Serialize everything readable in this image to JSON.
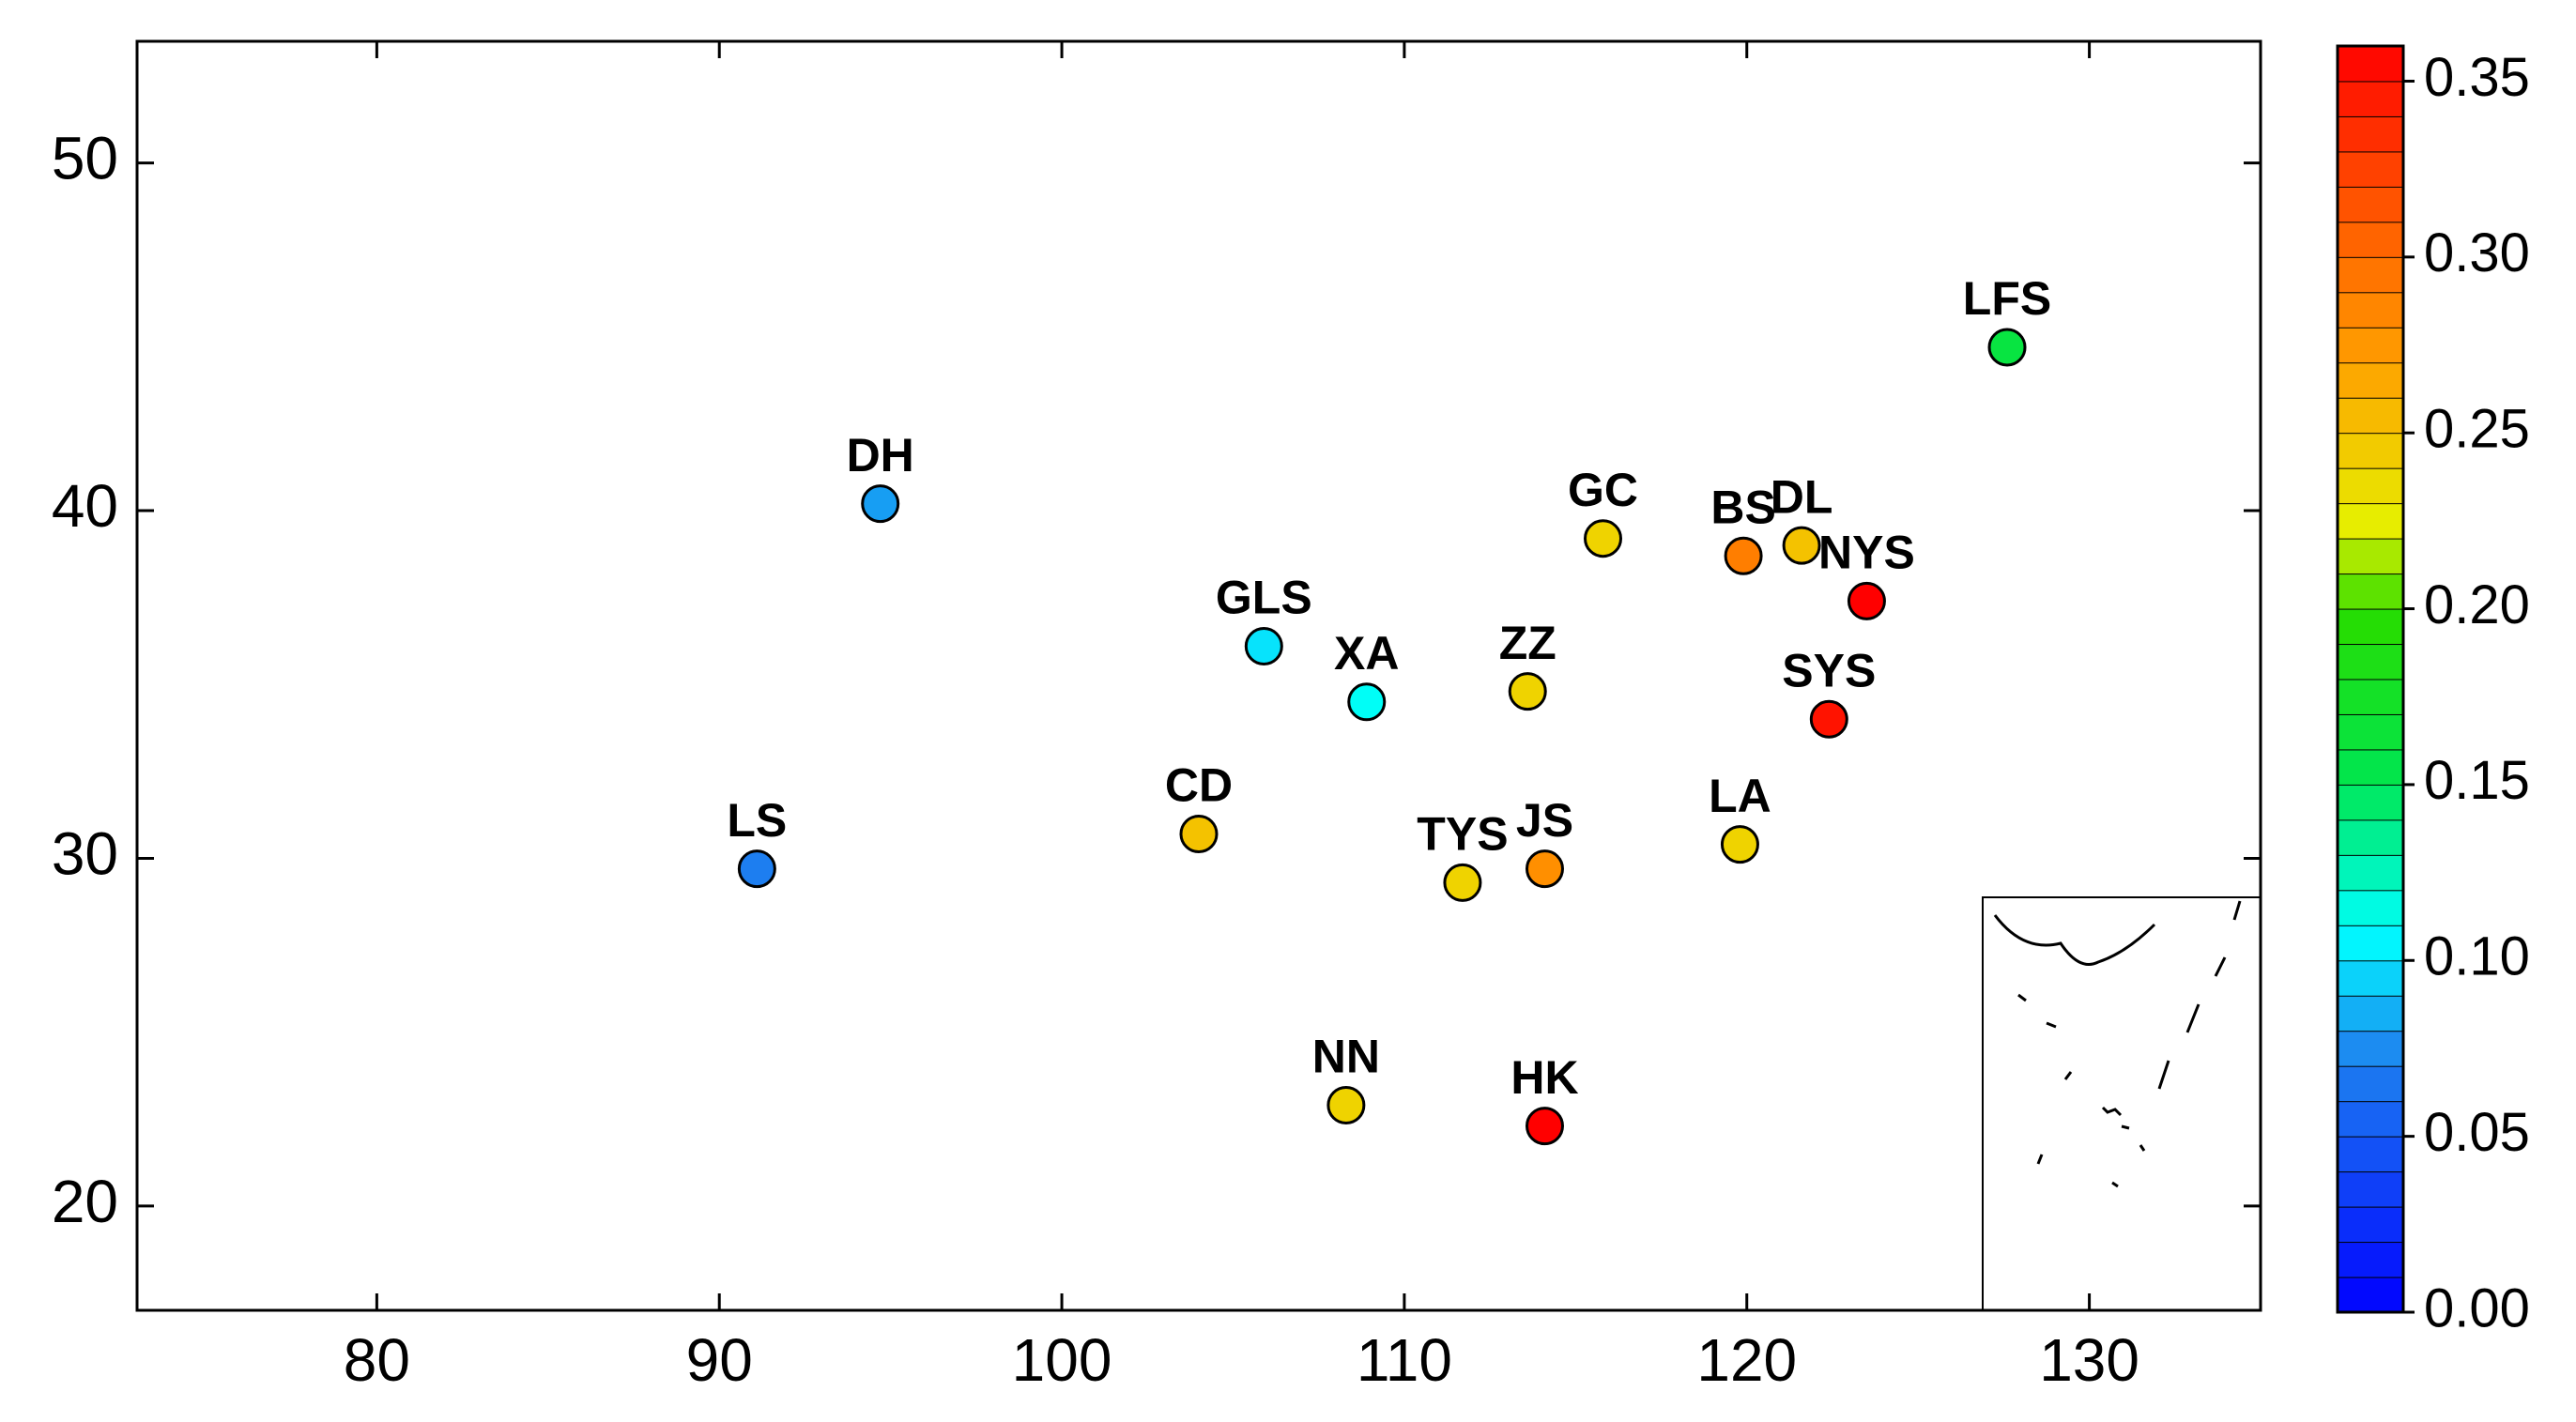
{
  "chart_data": {
    "type": "map",
    "xlim": [
      73,
      135
    ],
    "ylim": [
      17,
      53.5
    ],
    "xticks": [
      80,
      90,
      100,
      110,
      120,
      130
    ],
    "yticks": [
      20,
      30,
      40,
      50
    ],
    "colorbar": {
      "lim": [
        0,
        0.36
      ],
      "ticks": [
        {
          "value": 0,
          "label": "0.00"
        },
        0.05,
        {
          "value": 0.1,
          "label": "0.10"
        },
        0.15,
        {
          "value": 0.2,
          "label": "0.20"
        },
        0.25,
        {
          "value": 0.3,
          "label": "0.30"
        },
        0.35
      ]
    },
    "stations": [
      {
        "name": "DH",
        "lon": 94.7,
        "lat": 40.2,
        "value": 0.08
      },
      {
        "name": "LS",
        "lon": 91.1,
        "lat": 29.7,
        "value": 0.07
      },
      {
        "name": "GLS",
        "lon": 105.9,
        "lat": 36.1,
        "value": 0.1
      },
      {
        "name": "XA",
        "lon": 108.9,
        "lat": 34.5,
        "value": 0.11
      },
      {
        "name": "CD",
        "lon": 104.0,
        "lat": 30.7,
        "value": 0.25
      },
      {
        "name": "TYS",
        "lon": 111.7,
        "lat": 29.3,
        "value": 0.24
      },
      {
        "name": "JS",
        "lon": 114.1,
        "lat": 29.7,
        "value": 0.28
      },
      {
        "name": "NN",
        "lon": 108.3,
        "lat": 22.9,
        "value": 0.24
      },
      {
        "name": "HK",
        "lon": 114.1,
        "lat": 22.3,
        "value": 0.36
      },
      {
        "name": "LA",
        "lon": 119.8,
        "lat": 30.4,
        "value": 0.24
      },
      {
        "name": "ZZ",
        "lon": 113.6,
        "lat": 34.8,
        "value": 0.24
      },
      {
        "name": "GC",
        "lon": 115.8,
        "lat": 39.2,
        "value": 0.24
      },
      {
        "name": "BS",
        "lon": 119.9,
        "lat": 38.7,
        "value": 0.29
      },
      {
        "name": "DL",
        "lon": 121.6,
        "lat": 39.0,
        "value": 0.25
      },
      {
        "name": "NYS",
        "lon": 123.5,
        "lat": 37.4,
        "value": 0.36
      },
      {
        "name": "SYS",
        "lon": 122.4,
        "lat": 34.0,
        "value": 0.35
      },
      {
        "name": "LFS",
        "lon": 127.6,
        "lat": 44.7,
        "value": 0.16
      }
    ]
  }
}
